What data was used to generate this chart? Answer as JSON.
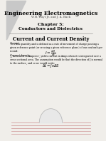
{
  "bg_color": "#f0eeea",
  "title_main": "Engineering Electromagnetics",
  "title_sub": "W.H. Hayt Jr. and J. A. Buck",
  "chapter": "Chapter 5:",
  "chapter_sub": "Conductors and Dielectrics",
  "section_title": "Current and Current Density",
  "current_label": "Current",
  "current_text": " is a flux quantity and is defined as a rate of movement of charge passing a given reference point (or crossing a given reference plane) of one coulomb per second:",
  "formula1": "$I = \\frac{dQ}{dt}$",
  "density_label": "Current density,",
  "density_text": " J, measured in Amperes², yields current in Amps when it is integrated over a cross sectional area. The assumption would be that the direction of J is normal to the surface, and so we would write:",
  "formula2": "$\\Delta I = J_N \\Delta S$",
  "triangle_color": "#c8c8c8",
  "sep_line_color": "#888888",
  "line_color": "#d4a0a0",
  "bump_color": "#e8e8e8",
  "bump_line_color": "#b0b0b0"
}
